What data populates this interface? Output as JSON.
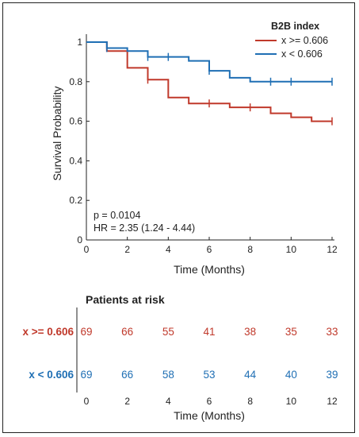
{
  "chart_data": {
    "type": "line",
    "subtype": "kaplan-meier",
    "xlabel": "Time (Months)",
    "ylabel": "Survival Probability",
    "xlim": [
      0,
      12
    ],
    "ylim": [
      0,
      1
    ],
    "xticks": [
      "0",
      "2",
      "4",
      "6",
      "8",
      "10",
      "12"
    ],
    "yticks": [
      "0",
      "0.2",
      "0.4",
      "0.6",
      "0.8",
      "1"
    ],
    "legend": {
      "title": "B2B index",
      "position": "top-right"
    },
    "annotations": {
      "p_value": "p = 0.0104",
      "hr": "HR = 2.35 (1.24 - 4.44)"
    },
    "series": [
      {
        "name": "x >= 0.606",
        "color": "#c0392b",
        "steps": [
          [
            0,
            1.0
          ],
          [
            1,
            0.955
          ],
          [
            2,
            0.87
          ],
          [
            3,
            0.81
          ],
          [
            4,
            0.72
          ],
          [
            5,
            0.69
          ],
          [
            7,
            0.67
          ],
          [
            9,
            0.64
          ],
          [
            10,
            0.62
          ],
          [
            11,
            0.6
          ],
          [
            12,
            0.6
          ]
        ],
        "censors": [
          [
            3,
            0.81
          ],
          [
            6,
            0.69
          ],
          [
            8,
            0.67
          ],
          [
            12,
            0.6
          ]
        ]
      },
      {
        "name": "x < 0.606",
        "color": "#1f6fb4",
        "steps": [
          [
            0,
            1.0
          ],
          [
            1,
            0.97
          ],
          [
            2,
            0.955
          ],
          [
            3,
            0.925
          ],
          [
            5,
            0.905
          ],
          [
            6,
            0.855
          ],
          [
            7,
            0.82
          ],
          [
            8,
            0.8
          ],
          [
            12,
            0.8
          ]
        ],
        "censors": [
          [
            1,
            0.97
          ],
          [
            3,
            0.925
          ],
          [
            4,
            0.925
          ],
          [
            6,
            0.855
          ],
          [
            9,
            0.8
          ],
          [
            10,
            0.8
          ],
          [
            12,
            0.8
          ]
        ]
      }
    ],
    "risk_table": {
      "title": "Patients at risk",
      "xlabel": "Time (Months)",
      "times": [
        "0",
        "2",
        "4",
        "6",
        "8",
        "10",
        "12"
      ],
      "rows": [
        {
          "label": "x >= 0.606",
          "color": "#c0392b",
          "values": [
            "69",
            "66",
            "55",
            "41",
            "38",
            "35",
            "33"
          ]
        },
        {
          "label": "x < 0.606",
          "color": "#1f6fb4",
          "values": [
            "69",
            "66",
            "58",
            "53",
            "44",
            "40",
            "39"
          ]
        }
      ]
    }
  }
}
